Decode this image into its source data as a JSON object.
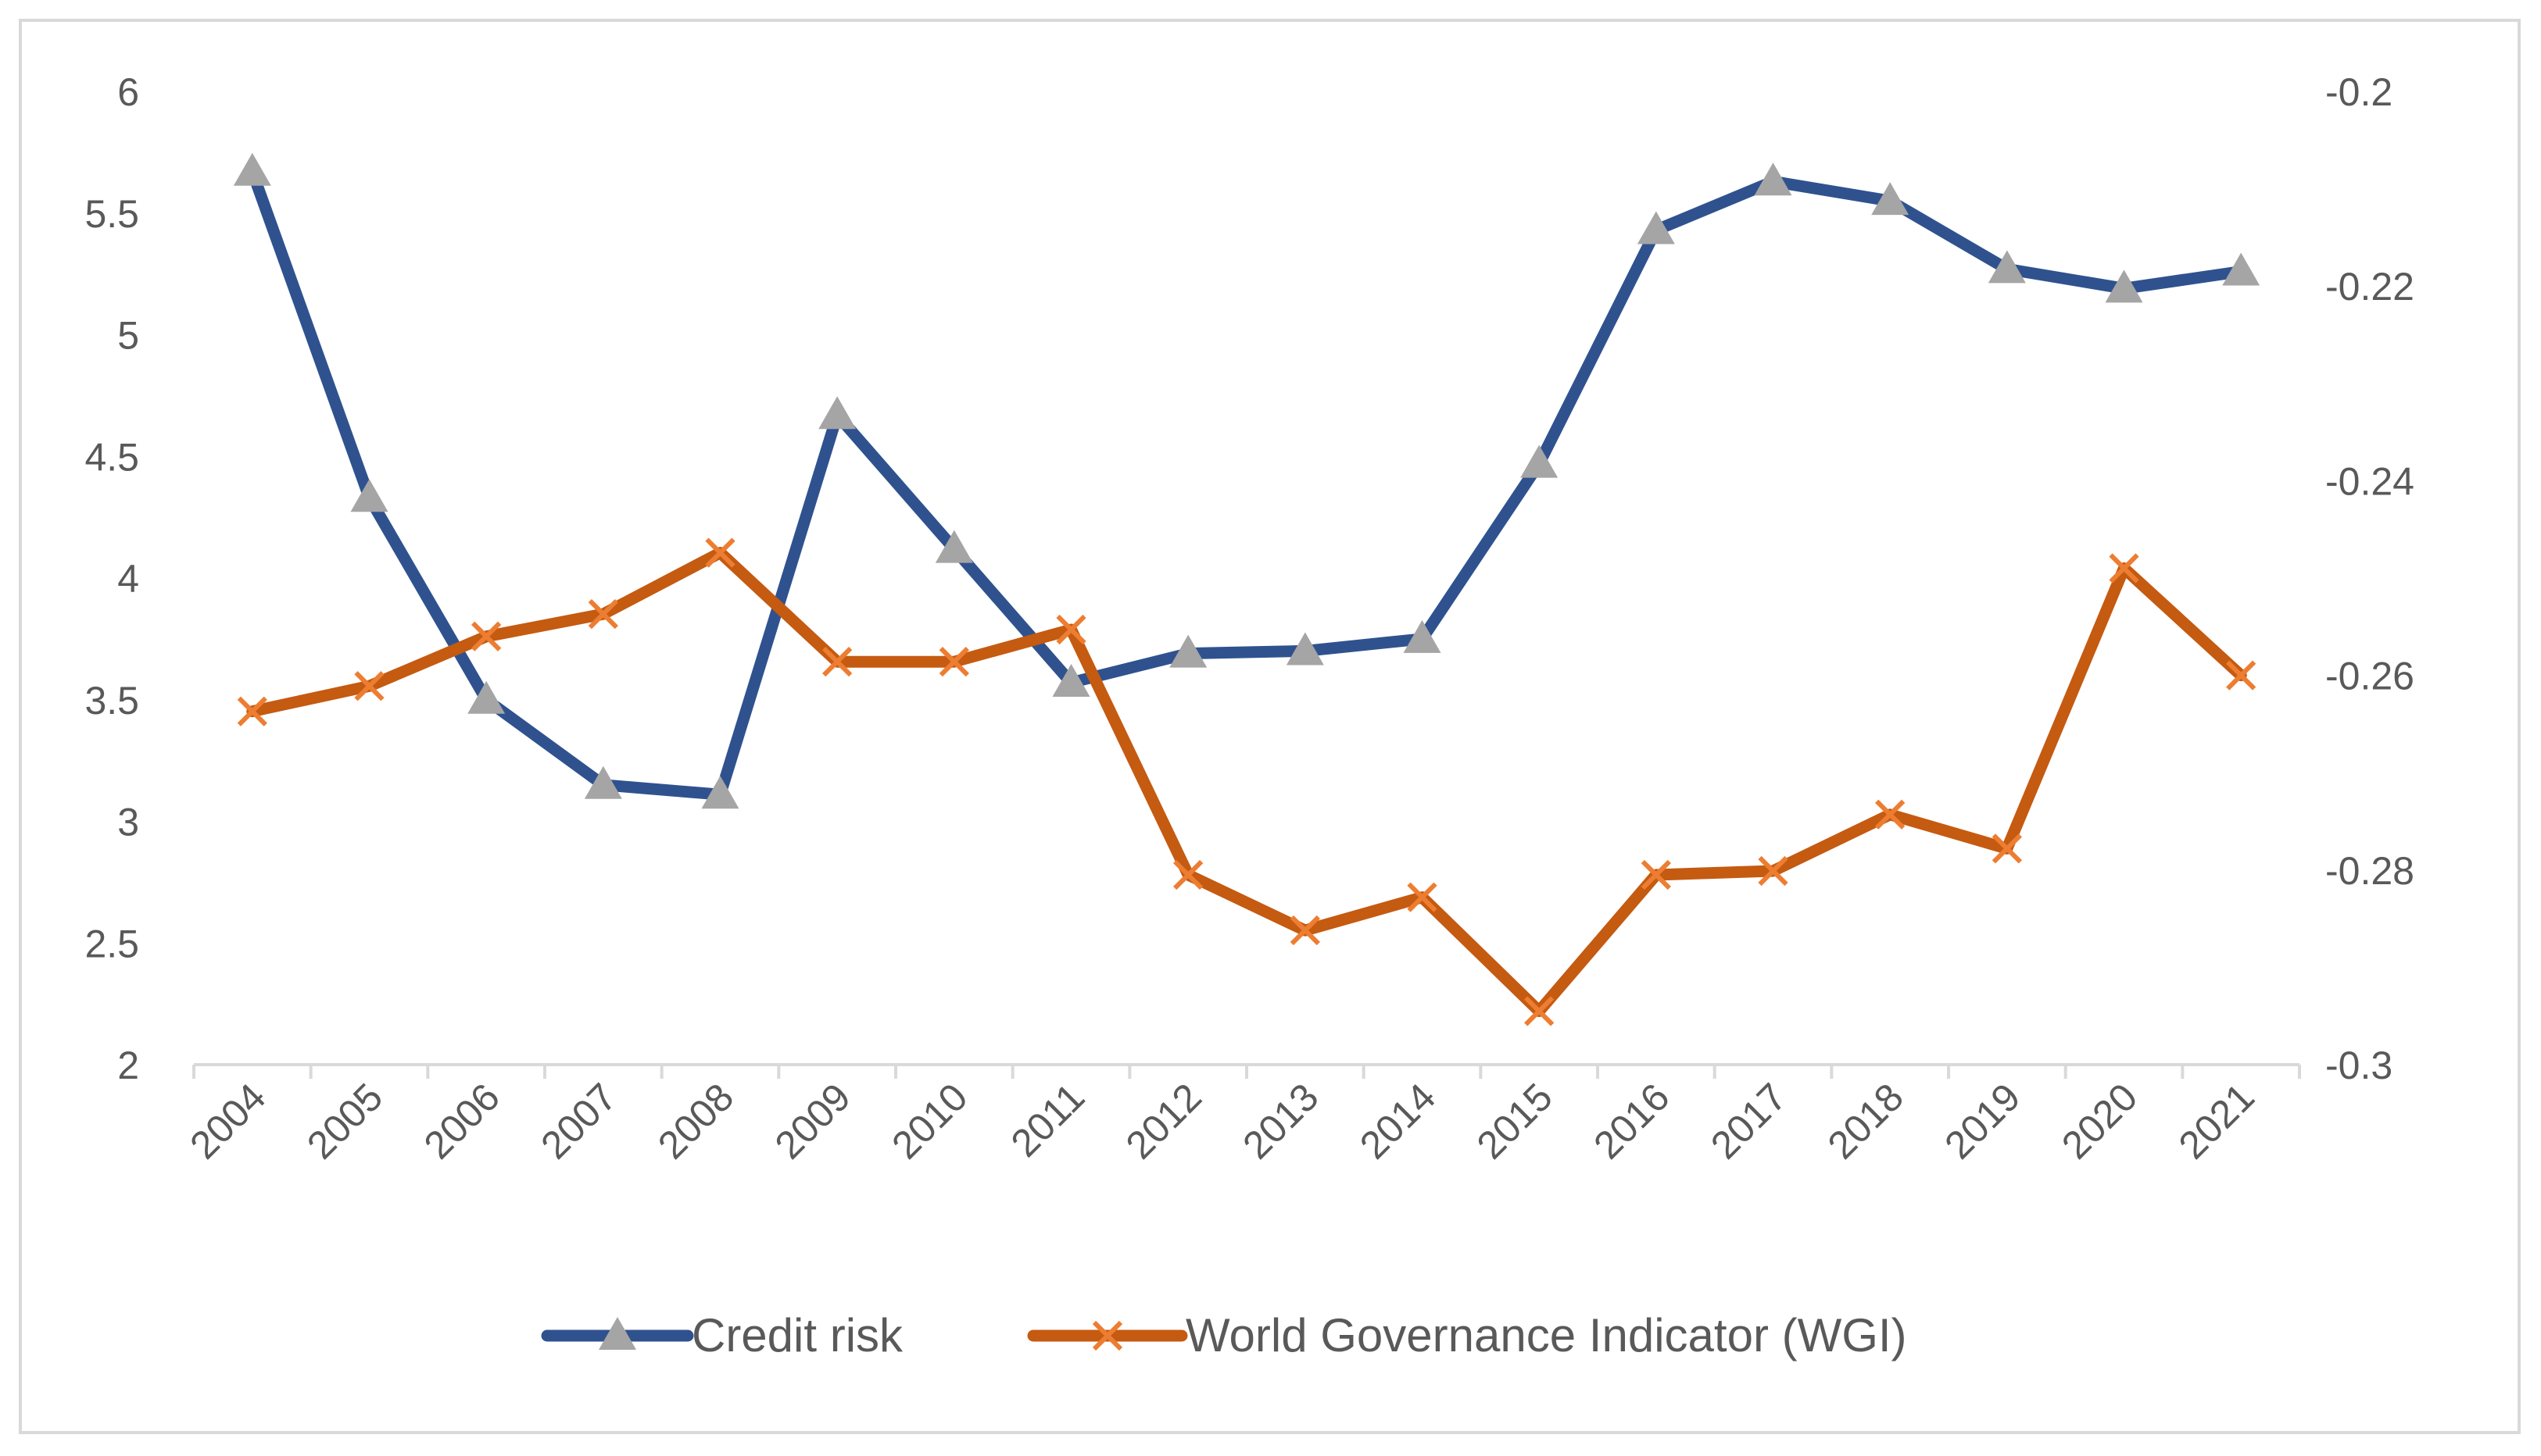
{
  "chart_data": {
    "type": "line",
    "title": "",
    "xlabel": "",
    "categories": [
      "2004",
      "2005",
      "2006",
      "2007",
      "2008",
      "2009",
      "2010",
      "2011",
      "2012",
      "2013",
      "2014",
      "2015",
      "2016",
      "2017",
      "2018",
      "2019",
      "2020",
      "2021"
    ],
    "y_left": {
      "range": [
        2,
        6
      ],
      "ticks": [
        "2",
        "2.5",
        "3",
        "3.5",
        "4",
        "4.5",
        "5",
        "5.5",
        "6"
      ],
      "tick_values": [
        2,
        2.5,
        3,
        3.5,
        4,
        4.5,
        5,
        5.5,
        6
      ]
    },
    "y_right": {
      "range": [
        -0.3,
        -0.2
      ],
      "ticks": [
        "-0.3",
        "-0.28",
        "-0.26",
        "-0.24",
        "-0.22",
        "-0.2"
      ],
      "tick_values": [
        -0.3,
        -0.28,
        -0.26,
        -0.24,
        -0.22,
        -0.2
      ]
    },
    "grid": false,
    "legend_position": "bottom",
    "series": [
      {
        "name": "Credit risk",
        "axis": "left",
        "color": "#2f528f",
        "marker": "triangle",
        "marker_color": "#a5a5a5",
        "values": [
          5.67,
          4.33,
          3.5,
          3.15,
          3.11,
          4.67,
          4.12,
          3.57,
          3.69,
          3.7,
          3.75,
          4.47,
          5.43,
          5.63,
          5.55,
          5.27,
          5.19,
          5.26
        ]
      },
      {
        "name": "World Governance Indicator (WGI)",
        "axis": "right",
        "color": "#c55a11",
        "marker": "x",
        "marker_color": "#ed7d31",
        "values": [
          -0.2637,
          -0.2611,
          -0.256,
          -0.2537,
          -0.2474,
          -0.2586,
          -0.2586,
          -0.2553,
          -0.2805,
          -0.2862,
          -0.2828,
          -0.2945,
          -0.2805,
          -0.2801,
          -0.2743,
          -0.2778,
          -0.249,
          -0.26
        ]
      }
    ]
  }
}
